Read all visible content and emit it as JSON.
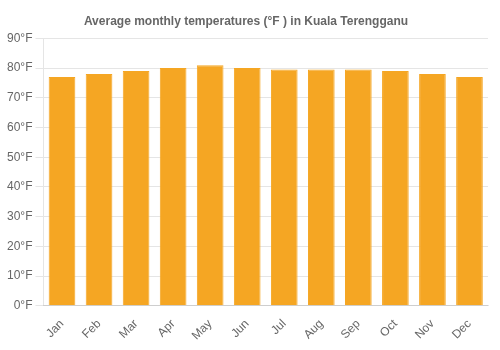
{
  "chart_data": {
    "type": "bar",
    "title": "Average monthly temperatures (°F ) in Kuala Terengganu",
    "categories": [
      "Jan",
      "Feb",
      "Mar",
      "Apr",
      "May",
      "Jun",
      "Jul",
      "Aug",
      "Sep",
      "Oct",
      "Nov",
      "Dec"
    ],
    "values": [
      77.0,
      78.0,
      79.0,
      80.0,
      81.0,
      80.0,
      79.5,
      79.5,
      79.5,
      79.0,
      78.0,
      77.0
    ],
    "color": "#F5A623",
    "ylim": [
      0,
      90
    ],
    "yticks": [
      {
        "value": 0,
        "label": "0°F"
      },
      {
        "value": 10,
        "label": "10°F"
      },
      {
        "value": 20,
        "label": "20°F"
      },
      {
        "value": 30,
        "label": "30°F"
      },
      {
        "value": 40,
        "label": "40°F"
      },
      {
        "value": 50,
        "label": "50°F"
      },
      {
        "value": 60,
        "label": "60°F"
      },
      {
        "value": 70,
        "label": "70°F"
      },
      {
        "value": 80,
        "label": "80°F"
      },
      {
        "value": 90,
        "label": "90°F"
      }
    ],
    "grid": true
  }
}
